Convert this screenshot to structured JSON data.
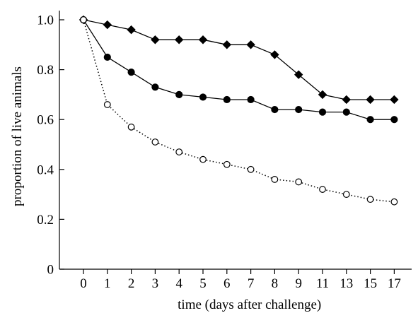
{
  "chart_data": {
    "type": "line",
    "title": "",
    "xlabel": "time (days after challenge)",
    "ylabel": "proportion of live animals",
    "categories": [
      "0",
      "1",
      "2",
      "3",
      "4",
      "5",
      "6",
      "7",
      "8",
      "9",
      "11",
      "13",
      "15",
      "17"
    ],
    "ylim": [
      0,
      1.0
    ],
    "yticks": [
      "0",
      "0.2",
      "0.4",
      "0.6",
      "0.8",
      "1.0"
    ],
    "ytick_values": [
      0,
      0.2,
      0.4,
      0.6,
      0.8,
      1.0
    ],
    "series": [
      {
        "marker": "diamond",
        "line_style": "solid",
        "values": [
          1.0,
          0.98,
          0.96,
          0.92,
          0.92,
          0.92,
          0.9,
          0.9,
          0.86,
          0.78,
          0.7,
          0.68,
          0.68,
          0.68
        ]
      },
      {
        "marker": "filled-circle",
        "line_style": "solid",
        "values": [
          1.0,
          0.85,
          0.79,
          0.73,
          0.7,
          0.69,
          0.68,
          0.68,
          0.64,
          0.64,
          0.63,
          0.63,
          0.6,
          0.6
        ]
      },
      {
        "marker": "open-circle",
        "line_style": "dotted",
        "values": [
          1.0,
          0.66,
          0.57,
          0.51,
          0.47,
          0.44,
          0.42,
          0.4,
          0.36,
          0.35,
          0.32,
          0.3,
          0.28,
          0.27
        ]
      }
    ],
    "grid": false,
    "legend": "none",
    "colors": {
      "ink": "#000000",
      "background": "#ffffff"
    }
  }
}
